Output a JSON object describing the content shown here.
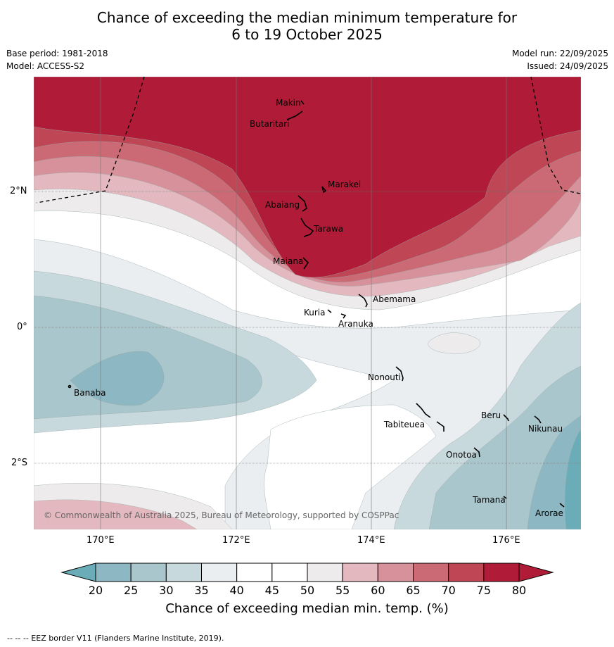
{
  "title_line1": "Chance of exceeding the median minimum temperature for",
  "title_line2": "6 to 19 October 2025",
  "base_period": "Base period: 1981-2018",
  "model": "Model: ACCESS-S2",
  "model_run": "Model run: 22/09/2025",
  "issued": "Issued: 24/09/2025",
  "lon_labels": [
    "170°E",
    "172°E",
    "174°E",
    "176°E"
  ],
  "lat_labels": [
    "2°N",
    "0°",
    "2°S"
  ],
  "places": {
    "makin": "Makin",
    "butaritari": "Butaritari",
    "marakei": "Marakei",
    "abaiang": "Abaiang",
    "tarawa": "Tarawa",
    "maiana": "Maiana",
    "abemama": "Abemama",
    "kuria": "Kuria",
    "aranuka": "Aranuka",
    "nonouti": "Nonouti",
    "banaba": "Banaba",
    "tabiteuea": "Tabiteuea",
    "beru": "Beru",
    "nikunau": "Nikunau",
    "onotoa": "Onotoa",
    "tamana": "Tamana",
    "arorae": "Arorae"
  },
  "copyright": "© Commonwealth of Australia 2025, Bureau of Meteorology, supported by COSPPac",
  "colorbar": {
    "ticks": [
      "20",
      "25",
      "30",
      "35",
      "40",
      "45",
      "50",
      "55",
      "60",
      "65",
      "70",
      "75",
      "80"
    ],
    "colors": [
      "#6aadb8",
      "#8db7c2",
      "#a8c6cb",
      "#c7d9dd",
      "#eaeef1",
      "#ffffff",
      "#ffffff",
      "#eeebec",
      "#e3b9bf",
      "#d6919a",
      "#cb6a74",
      "#bf4655",
      "#b01c37"
    ],
    "label": "Chance of exceeding median min. temp. (%)"
  },
  "footer": "--  --  -- EEZ border V11 (Flanders Marine Institute, 2019)."
}
